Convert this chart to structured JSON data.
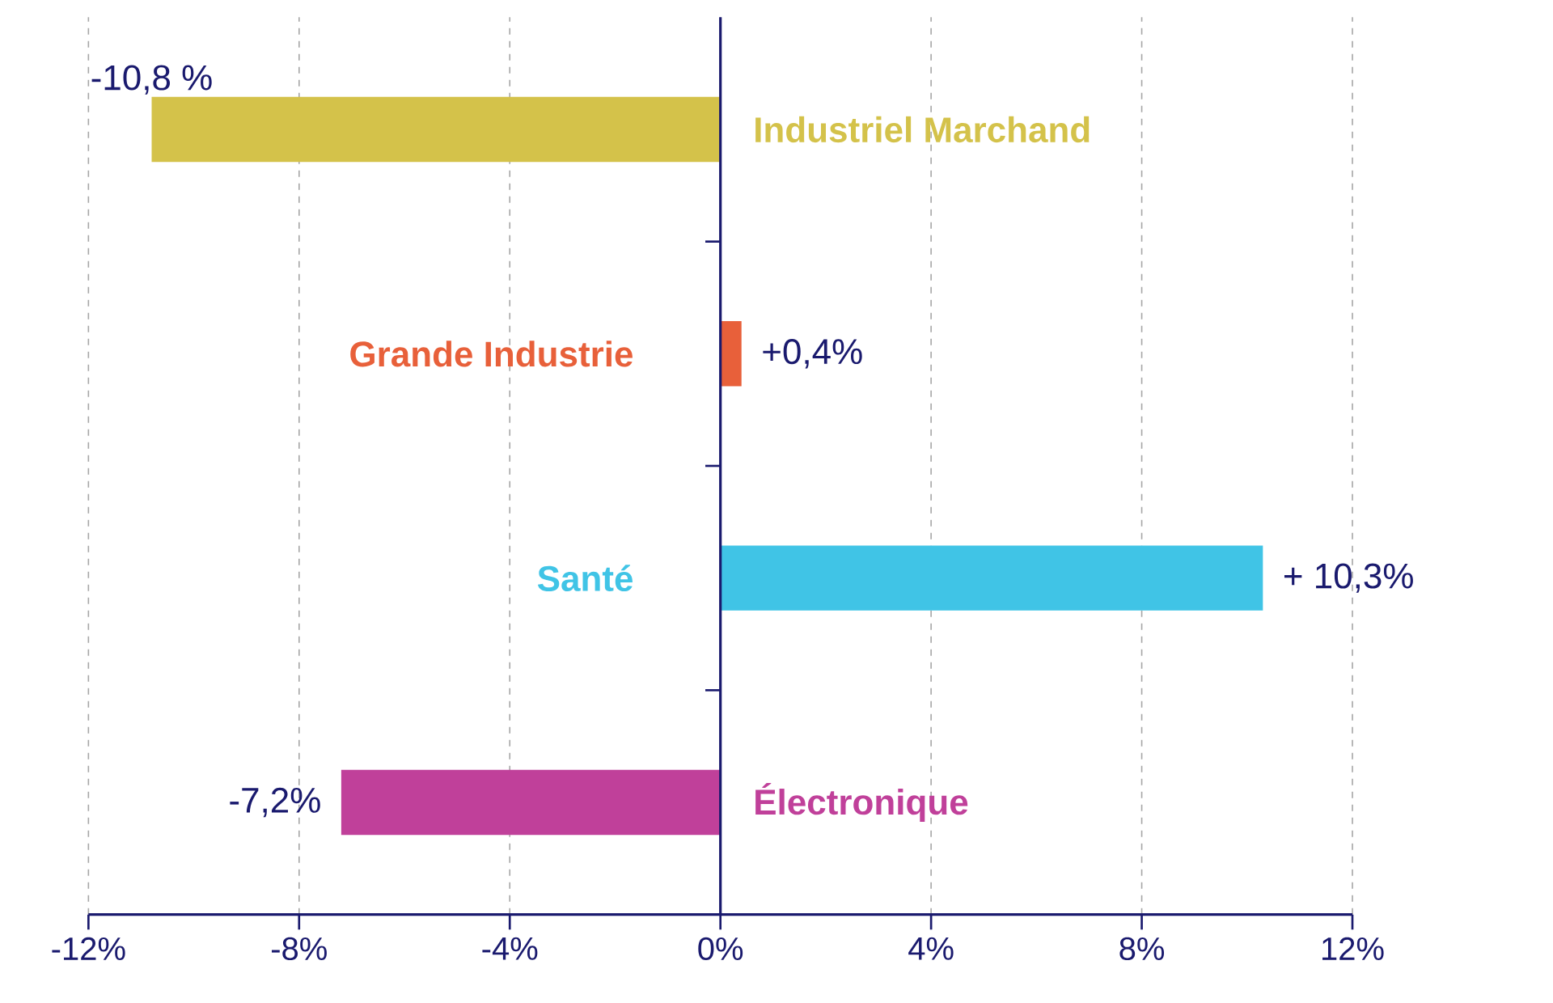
{
  "chart_data": {
    "type": "bar",
    "orientation": "horizontal",
    "categories": [
      "Industriel Marchand",
      "Grande Industrie",
      "Santé",
      "Électronique"
    ],
    "values": [
      -10.8,
      0.4,
      10.3,
      -7.2
    ],
    "colors": [
      "#d4c24a",
      "#e8603a",
      "#40c4e6",
      "#c0409a"
    ],
    "value_labels": [
      "-10,8 %",
      "+0,4%",
      "+ 10,3%",
      "-7,2%"
    ],
    "xlim": [
      -12,
      12
    ],
    "xticks": [
      {
        "value": -12,
        "label": "-12%"
      },
      {
        "value": -8,
        "label": "-8%"
      },
      {
        "value": -4,
        "label": "-4%"
      },
      {
        "value": 0,
        "label": "0%"
      },
      {
        "value": 4,
        "label": "4%"
      },
      {
        "value": 8,
        "label": "8%"
      },
      {
        "value": 12,
        "label": "12%"
      }
    ],
    "grid": "x"
  }
}
